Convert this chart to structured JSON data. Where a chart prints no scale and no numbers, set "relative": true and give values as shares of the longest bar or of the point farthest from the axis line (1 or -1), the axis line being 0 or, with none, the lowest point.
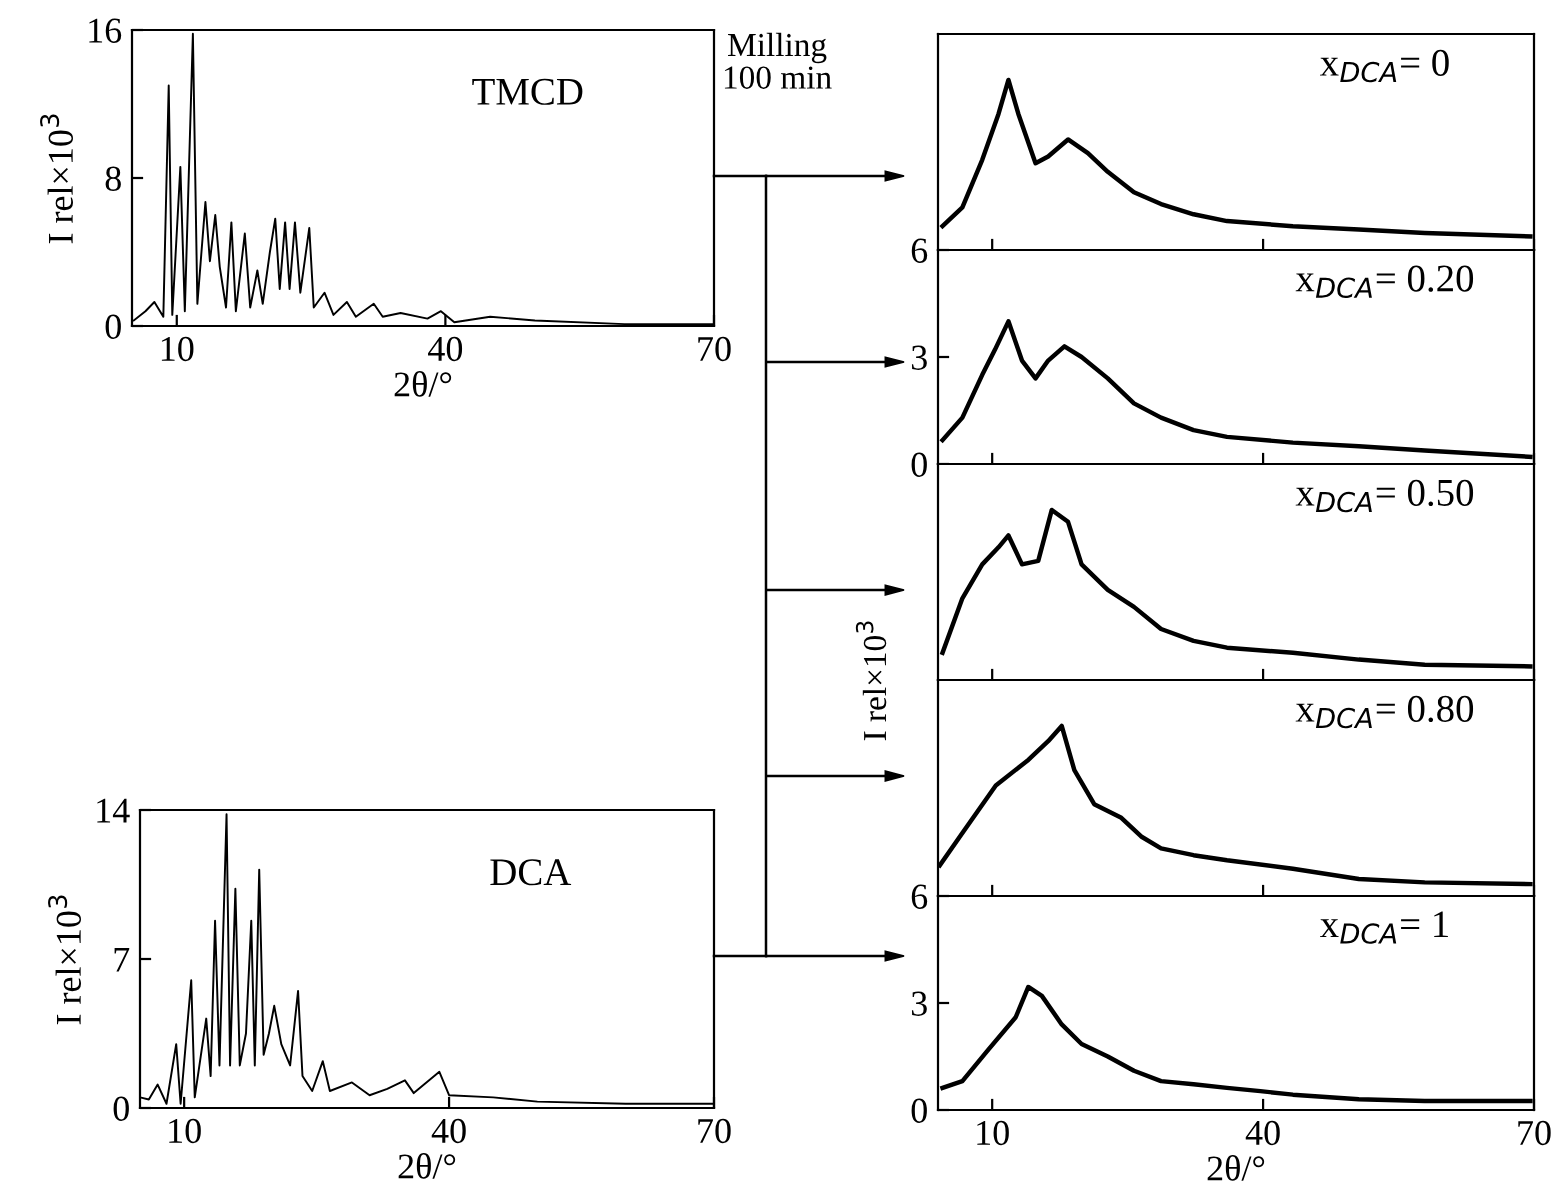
{
  "chart_data": [
    {
      "type": "line",
      "xlabel": "2θ/°",
      "ylabel": "I rel×10$^{3}$",
      "annotations": [
        "TMCD"
      ],
      "xlim": [
        5,
        70
      ],
      "ylim": [
        0,
        16
      ],
      "xticks": [
        10,
        40,
        70
      ],
      "yticks": [
        0,
        8,
        16
      ],
      "series": [
        {
          "color": "#000000",
          "x": [
            5.2,
            6.5,
            7.5,
            8.5,
            9.1,
            9.5,
            10.4,
            10.9,
            11.8,
            12.3,
            13.2,
            13.7,
            14.3,
            14.8,
            15.5,
            16.1,
            16.6,
            17.6,
            18.2,
            19.0,
            19.6,
            20.4,
            21.0,
            21.5,
            22.1,
            22.6,
            23.2,
            23.8,
            24.8,
            25.3,
            26.5,
            27.5,
            29,
            30,
            32,
            33,
            35,
            38,
            39.5,
            41,
            45,
            50,
            60,
            70
          ],
          "values": [
            0.3,
            0.8,
            1.3,
            0.5,
            13.0,
            0.6,
            8.6,
            0.8,
            15.8,
            1.2,
            6.7,
            3.5,
            6.0,
            3.2,
            1.0,
            5.6,
            0.8,
            5.0,
            1.0,
            3.0,
            1.2,
            4.0,
            5.8,
            2.0,
            5.6,
            2.0,
            5.6,
            1.8,
            5.3,
            1.0,
            1.8,
            0.6,
            1.3,
            0.5,
            1.2,
            0.5,
            0.7,
            0.4,
            0.8,
            0.2,
            0.5,
            0.3,
            0.1,
            0.1
          ]
        }
      ]
    },
    {
      "type": "line",
      "xlabel": "2θ/°",
      "ylabel": "I rel×10$^{3}$",
      "annotations": [
        "DCA"
      ],
      "xlim": [
        5,
        70
      ],
      "ylim": [
        0,
        14
      ],
      "xticks": [
        10,
        40,
        70
      ],
      "yticks": [
        0,
        7,
        14
      ],
      "series": [
        {
          "color": "#000000",
          "x": [
            5.0,
            6,
            7,
            8,
            9.1,
            9.6,
            10.8,
            11.2,
            12.5,
            13.0,
            13.5,
            14.0,
            14.8,
            15.2,
            15.8,
            16.3,
            17.0,
            17.6,
            18.0,
            18.5,
            19.0,
            19.6,
            20.2,
            21,
            22,
            22.9,
            23.4,
            24.5,
            25.7,
            26.5,
            29,
            31,
            33,
            35,
            36,
            38.9,
            40,
            45,
            50,
            60,
            70
          ],
          "values": [
            0.5,
            0.4,
            1.1,
            0.2,
            3.0,
            0.2,
            6.0,
            0.5,
            4.2,
            1.5,
            8.8,
            2.0,
            13.8,
            2.0,
            10.3,
            2.0,
            3.5,
            8.8,
            2.0,
            11.2,
            2.5,
            3.5,
            4.8,
            3.0,
            2.0,
            5.5,
            1.5,
            0.8,
            2.2,
            0.8,
            1.2,
            0.6,
            0.9,
            1.3,
            0.7,
            1.7,
            0.6,
            0.5,
            0.3,
            0.2,
            0.2
          ]
        }
      ]
    },
    {
      "type": "line",
      "annotations": [
        "x$_{DCA}$= 0",
        "Milling\n100 min"
      ],
      "xlim": [
        4,
        70
      ],
      "relative": true,
      "xticks": [
        10,
        40,
        70
      ],
      "tick_labels": false,
      "series": [
        {
          "color": "#000000",
          "x": [
            4.5,
            6.7,
            8.9,
            10.7,
            11.8,
            12.9,
            14.8,
            16.2,
            18.4,
            20.6,
            22.8,
            25.7,
            28.7,
            32.3,
            36,
            43.3,
            50.6,
            57.9,
            69.6
          ],
          "values": [
            0.14,
            0.25,
            0.53,
            0.8,
            1,
            0.8,
            0.51,
            0.55,
            0.65,
            0.57,
            0.46,
            0.34,
            0.27,
            0.21,
            0.17,
            0.14,
            0.12,
            0.1,
            0.08
          ]
        }
      ]
    },
    {
      "type": "line",
      "annotations": [
        "x$_{DCA}$= 0.20"
      ],
      "xlim": [
        4,
        70
      ],
      "ylim": [
        0,
        6
      ],
      "xticks": [
        10,
        40,
        70
      ],
      "yticks": [
        0,
        3,
        6
      ],
      "tick_labels": "y",
      "series": [
        {
          "color": "#000000",
          "x": [
            4.5,
            6.7,
            8.9,
            10.3,
            11.8,
            13.3,
            14.8,
            16.2,
            18.0,
            19.9,
            22.8,
            25.7,
            28.7,
            32.3,
            36,
            43.3,
            50.6,
            57.9,
            69.6
          ],
          "values": [
            0.67,
            1.3,
            2.5,
            3.2,
            4.0,
            2.9,
            2.4,
            2.9,
            3.3,
            3.0,
            2.4,
            1.7,
            1.3,
            0.95,
            0.76,
            0.6,
            0.5,
            0.38,
            0.2
          ]
        }
      ]
    },
    {
      "type": "line",
      "ylabel": "I rel×10$^{3}$",
      "annotations": [
        "x$_{DCA}$= 0.50"
      ],
      "xlim": [
        4,
        70
      ],
      "relative": true,
      "xticks": [
        10,
        40,
        70
      ],
      "tick_labels": false,
      "series": [
        {
          "color": "#000000",
          "x": [
            4.5,
            6.7,
            8.9,
            10.7,
            11.8,
            13.3,
            15.1,
            16.6,
            18.4,
            19.9,
            22.8,
            25.7,
            28.7,
            32.3,
            36,
            43.3,
            50.6,
            57.9,
            69.6
          ],
          "values": [
            0.16,
            0.48,
            0.68,
            0.78,
            0.85,
            0.68,
            0.7,
            1,
            0.93,
            0.68,
            0.53,
            0.43,
            0.3,
            0.23,
            0.19,
            0.16,
            0.12,
            0.09,
            0.08
          ]
        }
      ]
    },
    {
      "type": "line",
      "annotations": [
        "x$_{DCA}$= 0.80"
      ],
      "xlim": [
        4,
        70
      ],
      "relative": true,
      "xticks": [
        10,
        40,
        70
      ],
      "tick_labels": false,
      "series": [
        {
          "color": "#000000",
          "x": [
            4.2,
            6.7,
            10.4,
            14.0,
            16.2,
            17.7,
            19.1,
            21.3,
            24.3,
            26.5,
            28.7,
            32.3,
            36,
            43.3,
            50.6,
            57.9,
            69.6
          ],
          "values": [
            0.18,
            0.37,
            0.65,
            0.8,
            0.91,
            1,
            0.74,
            0.54,
            0.46,
            0.35,
            0.28,
            0.24,
            0.21,
            0.16,
            0.1,
            0.08,
            0.07
          ]
        }
      ]
    },
    {
      "type": "line",
      "xlabel": "2θ/°",
      "annotations": [
        "x$_{DCA}$= 1"
      ],
      "xlim": [
        4,
        70
      ],
      "ylim": [
        0,
        6
      ],
      "xticks": [
        10,
        40,
        70
      ],
      "yticks": [
        0,
        3,
        6
      ],
      "series": [
        {
          "color": "#000000",
          "x": [
            4.5,
            6.7,
            9.6,
            12.6,
            14.0,
            15.5,
            17.7,
            19.9,
            22.8,
            25.7,
            28.7,
            32.3,
            36,
            39.7,
            43.3,
            50.6,
            57.9,
            69.6
          ],
          "values": [
            0.62,
            0.81,
            1.7,
            2.6,
            3.45,
            3.2,
            2.4,
            1.85,
            1.5,
            1.1,
            0.81,
            0.72,
            0.62,
            0.53,
            0.43,
            0.3,
            0.25,
            0.25
          ]
        }
      ]
    }
  ]
}
